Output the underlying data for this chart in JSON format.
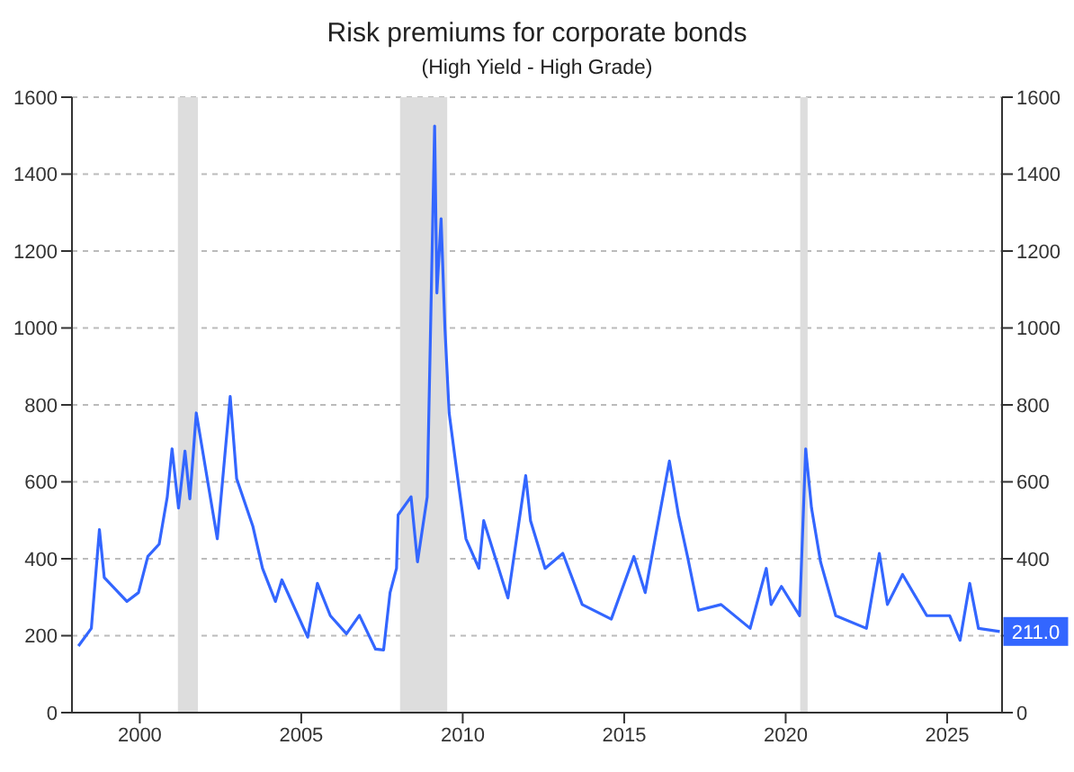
{
  "chart_data": {
    "type": "line",
    "title": "Risk premiums for corporate bonds",
    "subtitle": "(High Yield - High Grade)",
    "x": [
      1998.1,
      1998.5,
      1998.75,
      1998.9,
      1999.6,
      1999.96,
      2000.25,
      2000.6,
      2000.85,
      2001.0,
      2001.2,
      2001.4,
      2001.55,
      2001.75,
      2002.4,
      2002.8,
      2003.0,
      2003.5,
      2003.8,
      2004.2,
      2004.4,
      2005.2,
      2005.5,
      2005.9,
      2006.4,
      2006.8,
      2007.3,
      2007.55,
      2007.75,
      2007.95,
      2008.0,
      2008.4,
      2008.6,
      2008.9,
      2009.13,
      2009.2,
      2009.33,
      2009.45,
      2009.58,
      2009.82,
      2010.1,
      2010.5,
      2010.65,
      2011.4,
      2011.95,
      2012.1,
      2012.55,
      2013.1,
      2013.7,
      2014.6,
      2015.3,
      2015.65,
      2016.4,
      2016.68,
      2016.96,
      2017.3,
      2018.0,
      2018.9,
      2019.4,
      2019.55,
      2019.87,
      2020.43,
      2020.62,
      2020.8,
      2021.08,
      2021.55,
      2022.5,
      2022.9,
      2023.15,
      2023.62,
      2024.37,
      2025.08,
      2025.4,
      2025.7,
      2025.97,
      2026.63
    ],
    "series": [
      {
        "color": "#3366ff",
        "values": [
          173,
          219,
          476,
          351,
          289,
          312,
          406,
          438,
          560,
          686,
          532,
          680,
          556,
          779,
          452,
          822,
          608,
          485,
          375,
          289,
          345,
          196,
          336,
          252,
          205,
          253,
          165,
          163,
          312,
          375,
          514,
          561,
          392,
          561,
          1525,
          1091,
          1284,
          998,
          779,
          625,
          452,
          375,
          499,
          298,
          616,
          499,
          375,
          414,
          281,
          243,
          406,
          312,
          654,
          514,
          406,
          266,
          281,
          219,
          375,
          281,
          328,
          252,
          686,
          532,
          392,
          252,
          219,
          414,
          281,
          359,
          252,
          252,
          188,
          336,
          219,
          211
        ]
      }
    ],
    "xlim": [
      1997.9,
      2026.7
    ],
    "xticks": [
      2000,
      2005,
      2010,
      2015,
      2020,
      2025
    ],
    "ylim": [
      0,
      1600
    ],
    "yticks": [
      0,
      200,
      400,
      600,
      800,
      1000,
      1200,
      1400,
      1600
    ],
    "y2lim": [
      0,
      1600
    ],
    "y2ticks": [
      0,
      {
        "value": 200,
        "label": null
      },
      400,
      600,
      800,
      1000,
      1200,
      1400,
      1600
    ],
    "bands": [
      {
        "axis": "x",
        "from": 2001.18,
        "to": 2001.8,
        "color": "#dddddd"
      },
      {
        "axis": "x",
        "from": 2008.06,
        "to": 2009.52,
        "color": "#dddddd"
      },
      {
        "axis": "x",
        "from": 2020.45,
        "to": 2020.68,
        "color": "#dddddd"
      }
    ],
    "annotations": [
      {
        "text": "211.0",
        "x": 2026.63,
        "y": 211
      }
    ],
    "grid": "y",
    "marker": "none",
    "line_style": "solid"
  }
}
